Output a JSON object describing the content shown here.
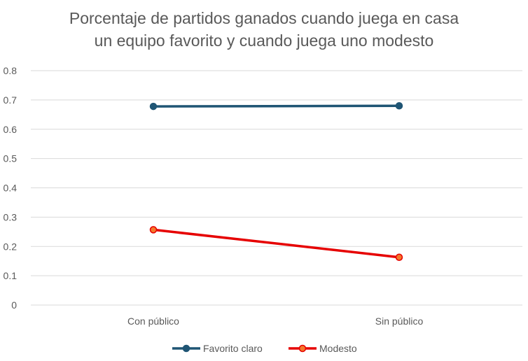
{
  "chart_data": {
    "type": "line",
    "title_lines": [
      "Porcentaje de partidos ganados cuando juega en casa",
      "un equipo favorito y cuando juega uno modesto"
    ],
    "categories": [
      "Con público",
      "Sin público"
    ],
    "y_ticks": [
      "0",
      "0.1",
      "0.2",
      "0.3",
      "0.4",
      "0.5",
      "0.6",
      "0.7",
      "0.8"
    ],
    "ylim": [
      0,
      0.8
    ],
    "grid": true,
    "legend_position": "bottom",
    "series": [
      {
        "name": "Favorito claro",
        "values": [
          0.678,
          0.68
        ],
        "color": "#1f5574",
        "marker_fill": "#1f5574"
      },
      {
        "name": "Modesto",
        "values": [
          0.257,
          0.163
        ],
        "color": "#e60000",
        "marker_fill": "#f4782a"
      }
    ]
  }
}
